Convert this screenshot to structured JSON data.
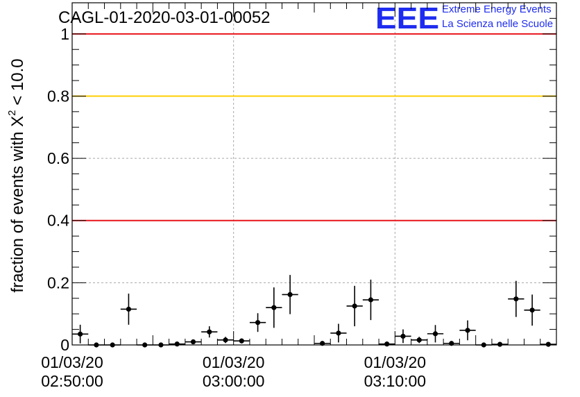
{
  "chart_data": {
    "type": "scatter",
    "title": "CAGL-01-2020-03-01-00052",
    "ylabel": {
      "prefix": "fraction of events with ",
      "symbol": "X",
      "superscript": "2",
      "suffix": " < 10.0"
    },
    "xlabel": "",
    "logo": {
      "mark": "EEE",
      "line1": "Extreme Energy Events",
      "line2": "La Scienza nelle Scuole"
    },
    "x_axis_unit": "minutes after 02:50:00 on 01/03/20",
    "xlim": [
      0,
      30
    ],
    "ylim": [
      0,
      1.1
    ],
    "grid": true,
    "x_ticks": [
      {
        "value": 0,
        "date": "01/03/20",
        "time": "02:50:00"
      },
      {
        "value": 10,
        "date": "01/03/20",
        "time": "03:00:00"
      },
      {
        "value": 20,
        "date": "01/03/20",
        "time": "03:10:00"
      }
    ],
    "y_ticks": [
      {
        "value": 0,
        "label": "0"
      },
      {
        "value": 0.2,
        "label": "0.2"
      },
      {
        "value": 0.4,
        "label": "0.4"
      },
      {
        "value": 0.6,
        "label": "0.6"
      },
      {
        "value": 0.8,
        "label": "0.8"
      },
      {
        "value": 1.0,
        "label": "1"
      }
    ],
    "reference_lines": [
      {
        "y": 1.0,
        "color": "#e8141c"
      },
      {
        "y": 0.8,
        "color": "#ffcc00"
      },
      {
        "y": 0.4,
        "color": "#e8141c"
      }
    ],
    "x_half_width": 0.5,
    "points": [
      {
        "x": 0.5,
        "y": 0.035,
        "err": 0.03
      },
      {
        "x": 1.5,
        "y": 0.0,
        "err": 0.0
      },
      {
        "x": 2.5,
        "y": 0.0,
        "err": 0.0
      },
      {
        "x": 3.5,
        "y": 0.115,
        "err": 0.05
      },
      {
        "x": 4.5,
        "y": 0.0,
        "err": 0.0
      },
      {
        "x": 5.5,
        "y": 0.0,
        "err": 0.0
      },
      {
        "x": 6.5,
        "y": 0.003,
        "err": 0.005
      },
      {
        "x": 7.5,
        "y": 0.01,
        "err": 0.006
      },
      {
        "x": 8.5,
        "y": 0.042,
        "err": 0.018
      },
      {
        "x": 9.5,
        "y": 0.016,
        "err": 0.01
      },
      {
        "x": 10.5,
        "y": 0.013,
        "err": 0.008
      },
      {
        "x": 11.5,
        "y": 0.072,
        "err": 0.03
      },
      {
        "x": 12.5,
        "y": 0.12,
        "err": 0.065
      },
      {
        "x": 13.5,
        "y": 0.162,
        "err": 0.063
      },
      {
        "x": 15.5,
        "y": 0.005,
        "err": 0.005
      },
      {
        "x": 16.5,
        "y": 0.038,
        "err": 0.03
      },
      {
        "x": 17.5,
        "y": 0.125,
        "err": 0.065
      },
      {
        "x": 18.5,
        "y": 0.145,
        "err": 0.065
      },
      {
        "x": 19.5,
        "y": 0.003,
        "err": 0.004
      },
      {
        "x": 20.5,
        "y": 0.028,
        "err": 0.022
      },
      {
        "x": 21.5,
        "y": 0.016,
        "err": 0.01
      },
      {
        "x": 22.5,
        "y": 0.036,
        "err": 0.028
      },
      {
        "x": 23.5,
        "y": 0.005,
        "err": 0.005
      },
      {
        "x": 24.5,
        "y": 0.047,
        "err": 0.032
      },
      {
        "x": 25.5,
        "y": 0.0,
        "err": 0.0
      },
      {
        "x": 26.5,
        "y": 0.002,
        "err": 0.002
      },
      {
        "x": 27.5,
        "y": 0.148,
        "err": 0.058
      },
      {
        "x": 28.5,
        "y": 0.112,
        "err": 0.05
      },
      {
        "x": 29.5,
        "y": 0.002,
        "err": 0.002
      }
    ]
  }
}
